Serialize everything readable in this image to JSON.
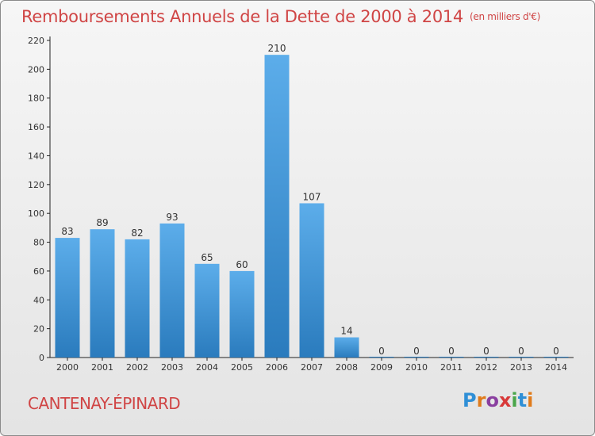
{
  "header": {
    "title": "Remboursements Annuels de la Dette de 2000 à 2014",
    "unit": "(en milliers d'€)"
  },
  "footer": {
    "commune": "CANTENAY-ÉPINARD",
    "brand": "Proxiti"
  },
  "colors": {
    "title": "#d04545",
    "bar_top": "#5cadea",
    "bar_bottom": "#2a7bbd",
    "axis": "#222222"
  },
  "chart_data": {
    "type": "bar",
    "title": "Remboursements Annuels de la Dette de 2000 à 2014",
    "subtitle": "(en milliers d'€)",
    "categories": [
      "2000",
      "2001",
      "2002",
      "2003",
      "2004",
      "2005",
      "2006",
      "2007",
      "2008",
      "2009",
      "2010",
      "2011",
      "2012",
      "2013",
      "2014"
    ],
    "values": [
      83,
      89,
      82,
      93,
      65,
      60,
      210,
      107,
      14,
      0,
      0,
      0,
      0,
      0,
      0
    ],
    "data_labels": [
      "83",
      "89",
      "82",
      "93",
      "65",
      "60",
      "210",
      "107",
      "14",
      "0",
      "0",
      "0",
      "0",
      "0",
      "0"
    ],
    "yticks": [
      "0",
      "20",
      "40",
      "60",
      "80",
      "100",
      "120",
      "140",
      "160",
      "180",
      "200",
      "220"
    ],
    "ylim": [
      0,
      220
    ],
    "grid": false,
    "legend": "none"
  }
}
